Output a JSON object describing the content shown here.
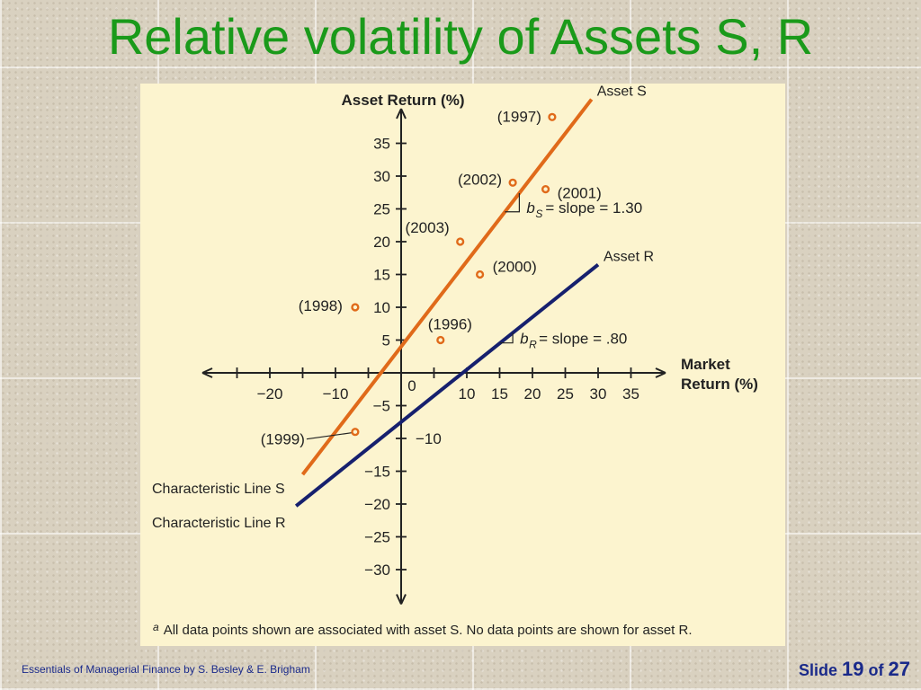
{
  "slide": {
    "title": "Relative volatility of Assets S, R",
    "footer_text": "Essentials of Managerial Finance by S. Besley & E. Brigham",
    "slide_label": "Slide",
    "slide_number": "19",
    "of_label": "of",
    "slide_total": "27"
  },
  "colors": {
    "title": "#1a9a1a",
    "asset_s": "#e06a1a",
    "asset_r": "#16206e",
    "panel": "#fcf4cf",
    "footer": "#1a2a8a"
  },
  "chart_data": {
    "type": "scatter",
    "title": "",
    "xlabel_line1": "Market",
    "xlabel_line2": "Return (%)",
    "ylabel": "Asset Return (%)",
    "x_ticks": [
      -20,
      -10,
      0,
      10,
      15,
      20,
      25,
      30,
      35
    ],
    "x_tick_labels": [
      "−20",
      "−10",
      "0",
      "10",
      "15",
      "20",
      "25",
      "30",
      "35"
    ],
    "y_ticks": [
      35,
      30,
      25,
      20,
      15,
      10,
      5,
      -5,
      -10,
      -15,
      -20,
      -25,
      -30
    ],
    "y_tick_labels": [
      "35",
      "30",
      "25",
      "20",
      "15",
      "10",
      "5",
      "−5",
      "−10",
      "−15",
      "−20",
      "−25",
      "−30"
    ],
    "xlim": [
      -30,
      40
    ],
    "ylim": [
      -35,
      40
    ],
    "series": [
      {
        "name": "Asset S",
        "color": "#e06a1a",
        "points": [
          {
            "label": "(1997)",
            "x": 23,
            "y": 39
          },
          {
            "label": "(2002)",
            "x": 17,
            "y": 29
          },
          {
            "label": "(2001)",
            "x": 22,
            "y": 28
          },
          {
            "label": "(2003)",
            "x": 9,
            "y": 20
          },
          {
            "label": "(2000)",
            "x": 12,
            "y": 15
          },
          {
            "label": "(1998)",
            "x": -7,
            "y": 10
          },
          {
            "label": "(1996)",
            "x": 6,
            "y": 5
          },
          {
            "label": "(1999)",
            "x": -7,
            "y": -9
          }
        ]
      }
    ],
    "lines": [
      {
        "name": "Asset S",
        "color": "#e06a1a",
        "slope": 1.3,
        "intercept": 4,
        "x_range": [
          -15,
          29
        ],
        "end_label": "Asset S",
        "start_label": "Characteristic Line S",
        "slope_label": "= slope = 1.30",
        "beta_symbol": "b",
        "beta_sub": "S"
      },
      {
        "name": "Asset R",
        "color": "#16206e",
        "slope": 0.8,
        "intercept": -7.5,
        "x_range": [
          -16,
          30
        ],
        "end_label": "Asset R",
        "start_label": "Characteristic Line R",
        "slope_label": "= slope = .80",
        "beta_symbol": "b",
        "beta_sub": "R"
      }
    ],
    "footnote_marker": "a",
    "footnote": "All data points shown are associated with asset S. No data points are shown for asset R."
  }
}
